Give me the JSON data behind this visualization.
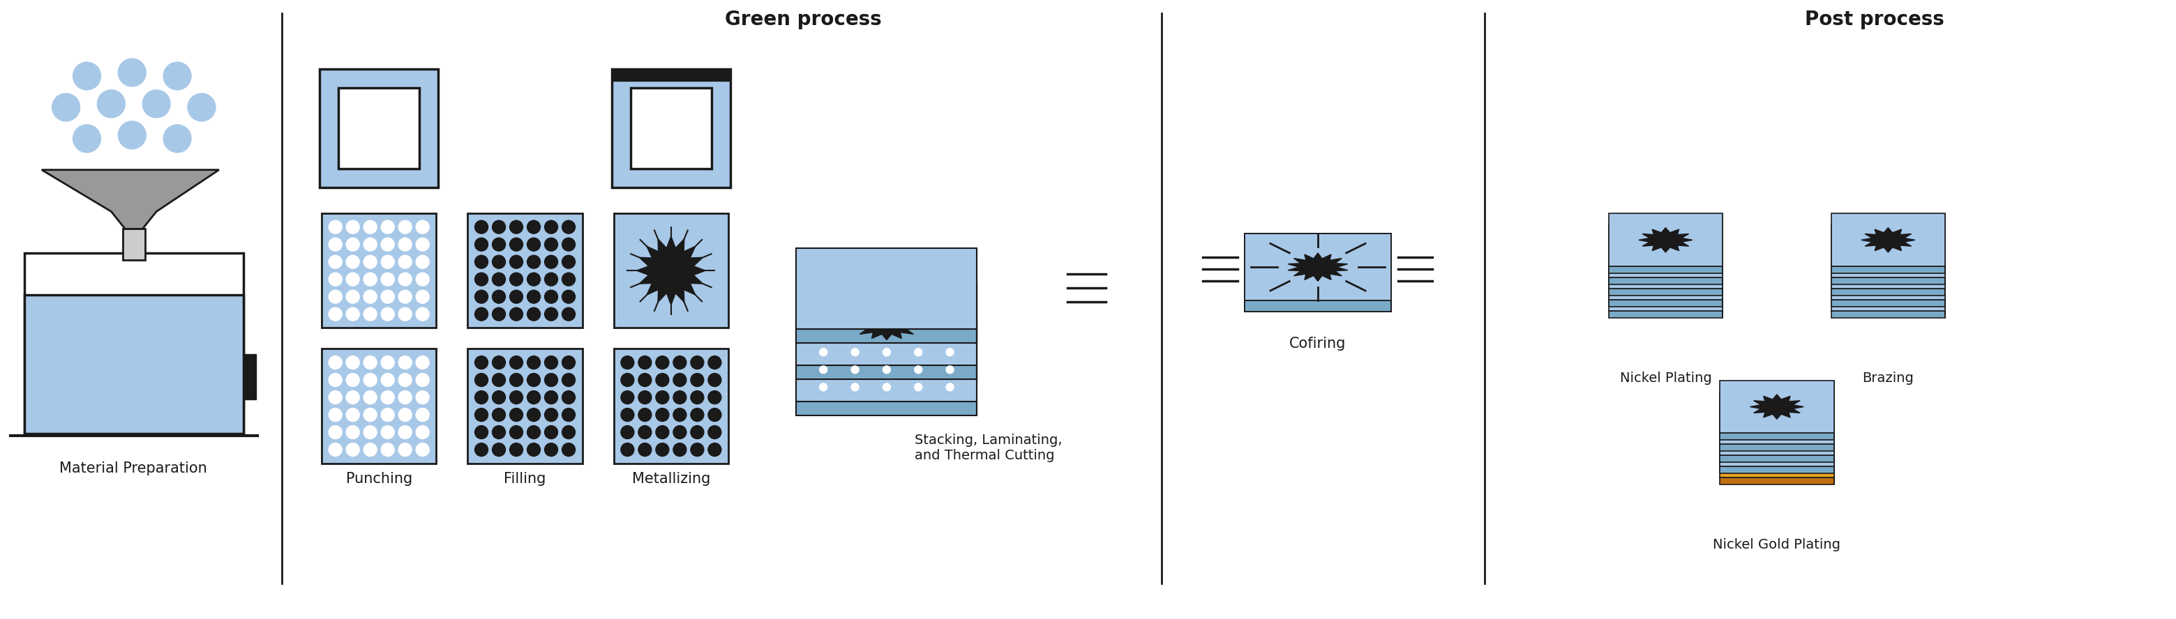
{
  "title_green": "Green process",
  "title_post": "Post process",
  "label_material": "Material Preparation",
  "label_punching": "Punching",
  "label_filling": "Filling",
  "label_metallizing": "Metallizing",
  "label_stacking": "Stacking, Laminating,\nand Thermal Cutting",
  "label_cofiring": "Cofiring",
  "label_nickel_plating": "Nickel Plating",
  "label_brazing": "Brazing",
  "label_nickel_gold": "Nickel Gold Plating",
  "light_blue": "#A8C8E8",
  "black": "#1a1a1a",
  "white": "#FFFFFF",
  "gray": "#999999",
  "light_gray": "#CCCCCC",
  "dark_gray": "#555555",
  "gold": "#E8A020",
  "bg": "#FFFFFF",
  "divider_color": "#333333"
}
